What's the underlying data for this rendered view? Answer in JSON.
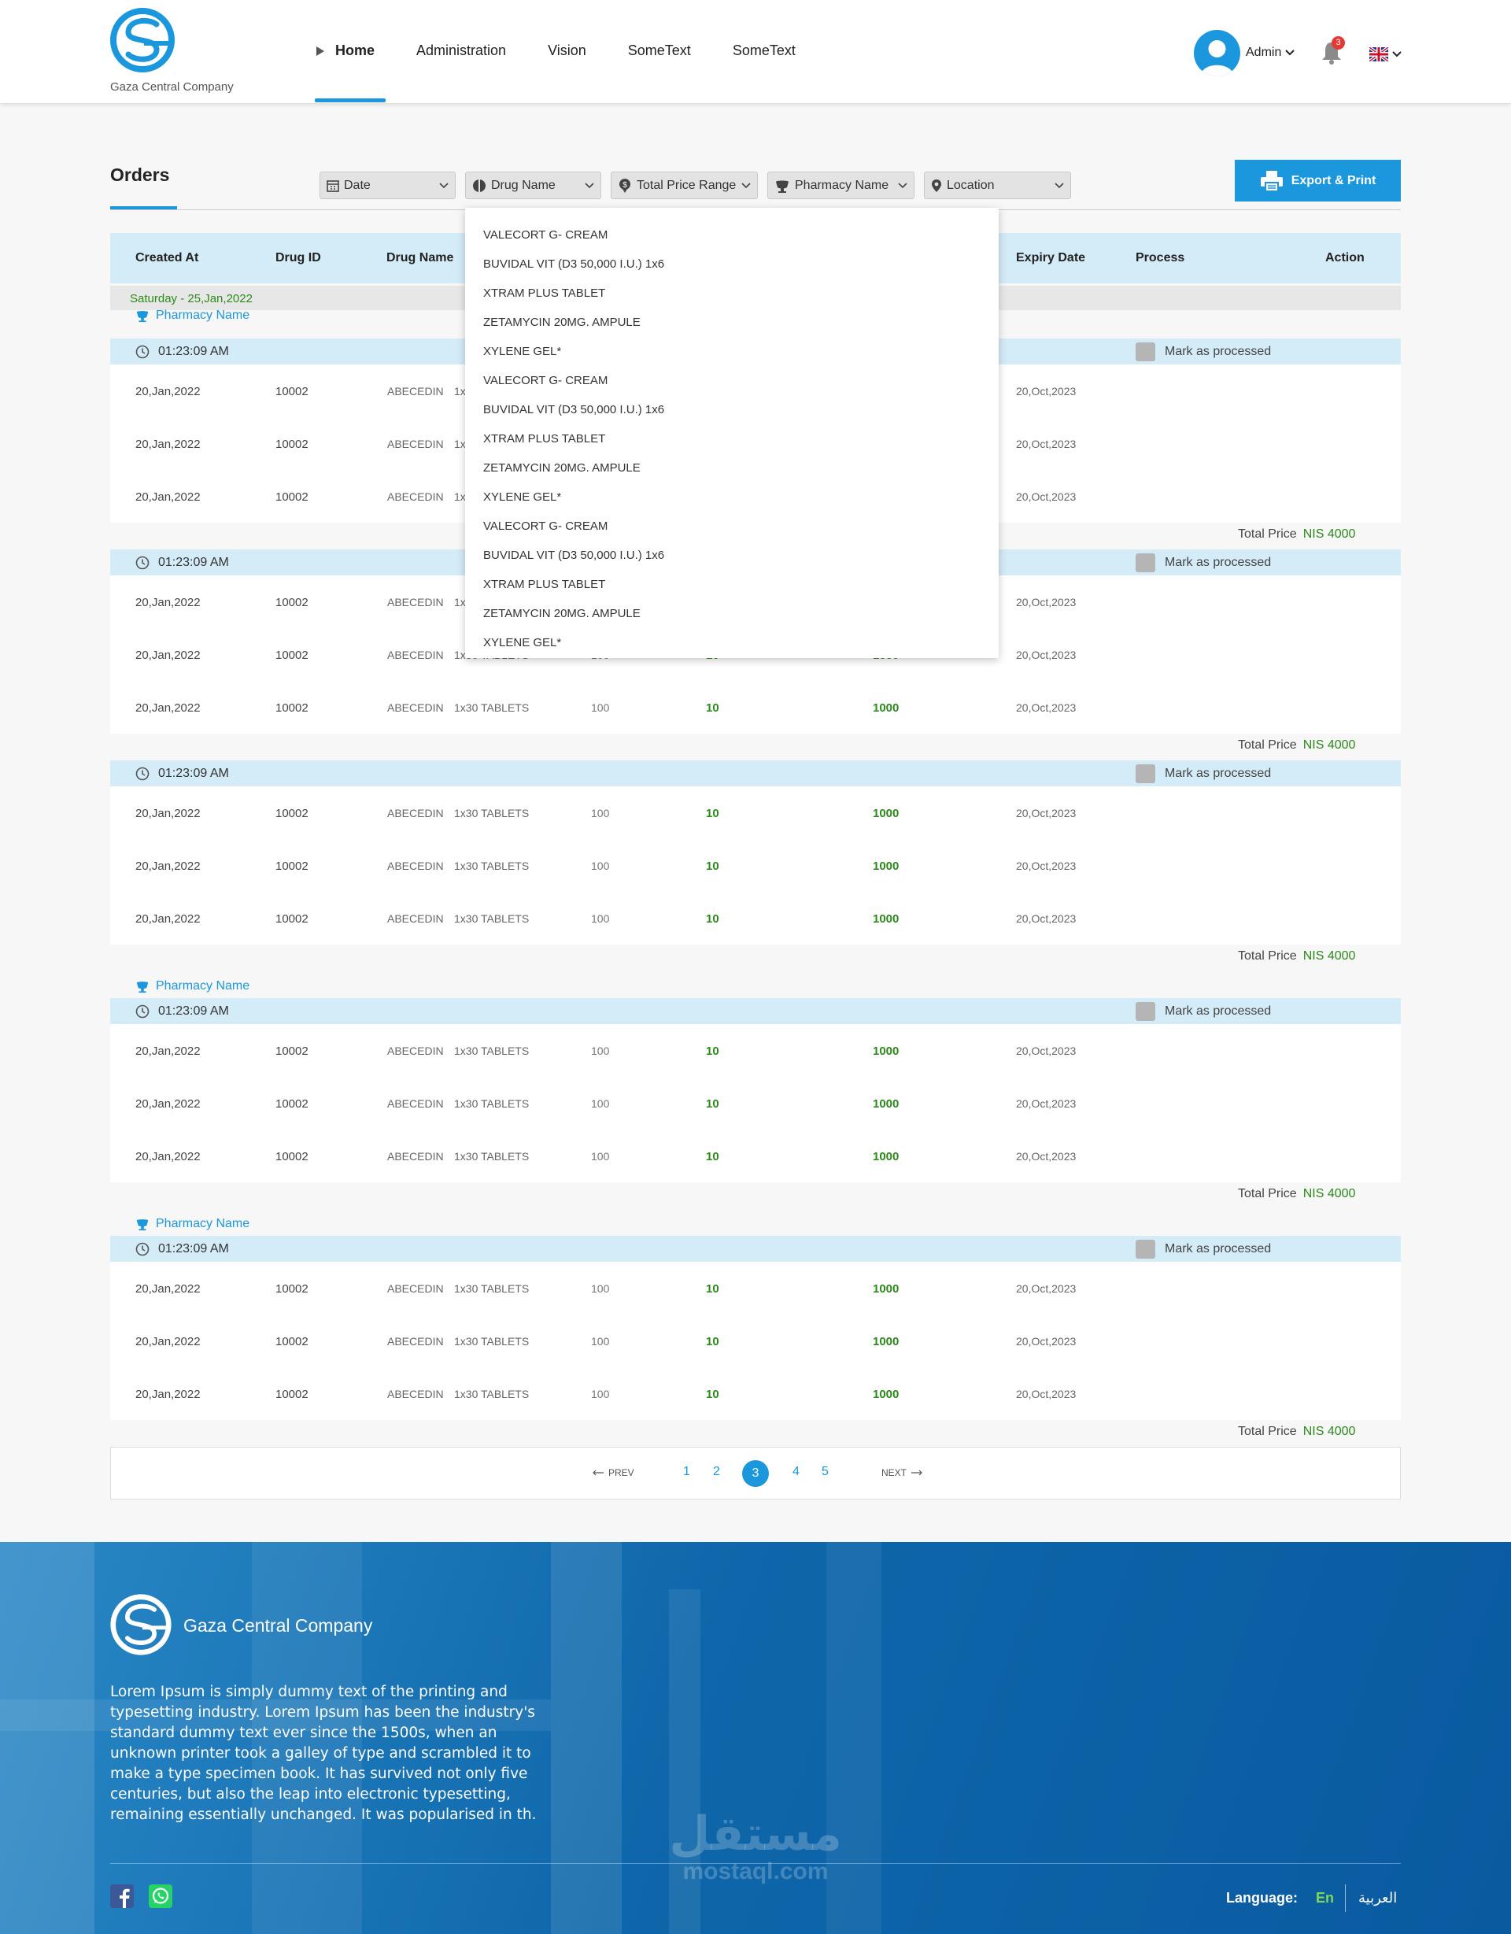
{
  "brand": {
    "name": "Gaza Central Company"
  },
  "nav": {
    "items": [
      "Home",
      "Administration",
      "Vision",
      "SomeText",
      "SomeText"
    ],
    "active": 0
  },
  "user": {
    "name": "Admin",
    "notifications": "3"
  },
  "page": {
    "title": "Orders",
    "export_label": "Export & Print"
  },
  "filters": [
    {
      "label": "Date",
      "icon": "calendar-icon"
    },
    {
      "label": "Drug Name",
      "icon": "pill-icon"
    },
    {
      "label": "Total Price Range",
      "icon": "price-tag-icon"
    },
    {
      "label": "Pharmacy Name",
      "icon": "pharmacy-icon"
    },
    {
      "label": "Location",
      "icon": "location-pin-icon"
    }
  ],
  "dropdown": {
    "items": [
      "VALECORT  G- CREAM",
      "BUVIDAL VIT (D3  50,000 I.U.)  1x6",
      "XTRAM PLUS TABLET",
      "ZETAMYCIN  20MG. AMPULE",
      "XYLENE GEL*",
      "VALECORT  G- CREAM",
      "BUVIDAL VIT (D3  50,000 I.U.)  1x6",
      "XTRAM PLUS TABLET",
      "ZETAMYCIN  20MG. AMPULE",
      "XYLENE GEL*",
      "VALECORT  G- CREAM",
      "BUVIDAL VIT (D3  50,000 I.U.)  1x6",
      "XTRAM PLUS TABLET",
      "ZETAMYCIN  20MG. AMPULE",
      "XYLENE GEL*"
    ]
  },
  "table": {
    "headers": [
      "Created At",
      "Drug ID",
      "Drug Name",
      "Expiry Date",
      "Process",
      "Action"
    ],
    "day": "Saturday - 25,Jan,2022",
    "pharmacy": "Pharmacy Name",
    "time": "01:23:09 AM",
    "mark_label": "Mark as processed",
    "row": {
      "created": "20,Jan,2022",
      "drug_id": "10002",
      "drug_name": "ABECEDIN",
      "pack": "1x30 TABLETS",
      "qty": "100",
      "col6": "10",
      "col7": "1000",
      "expiry": "20,Oct,2023"
    },
    "total_label": "Total Price",
    "total_value": "NIS 4000"
  },
  "pagination": {
    "prev": "PREV",
    "next": "NEXT",
    "pages": [
      "1",
      "2",
      "3",
      "4",
      "5"
    ],
    "current": "3"
  },
  "footer": {
    "company": "Gaza Central Company",
    "text": "Lorem Ipsum is simply dummy text of the printing and typesetting industry. Lorem Ipsum has been the industry's standard dummy text ever since the 1500s, when an unknown printer took a galley of type and scrambled it to make a type specimen book. It has survived not only five centuries, but also the leap into electronic typesetting, remaining essentially unchanged. It was popularised in th.",
    "language_label": "Language:",
    "lang_en": "En",
    "lang_ar": "العربية",
    "watermark_ar": "مستقل",
    "watermark_en": "mostaql.com"
  }
}
